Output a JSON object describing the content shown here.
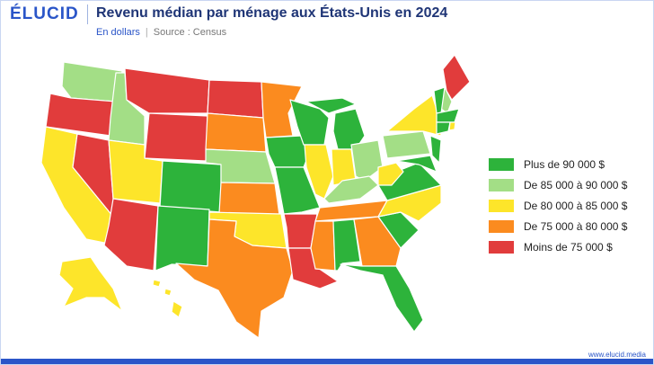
{
  "header": {
    "logo": "ÉLUCID",
    "title": "Revenu médian par ménage aux États-Unis en 2024",
    "subtitle": "En dollars",
    "source": "Source : Census"
  },
  "legend": {
    "items": [
      {
        "label": "Plus de 90 000 $",
        "color": "#2db33b"
      },
      {
        "label": "De 85 000 à 90 000 $",
        "color": "#a3de86"
      },
      {
        "label": "De 80 000 à 85 000 $",
        "color": "#fde52a"
      },
      {
        "label": "De 75 000 à 80 000 $",
        "color": "#fb8b1f"
      },
      {
        "label": "Moins de 75 000 $",
        "color": "#e13c3c"
      }
    ]
  },
  "footer": {
    "url": "www.elucid.media"
  }
}
